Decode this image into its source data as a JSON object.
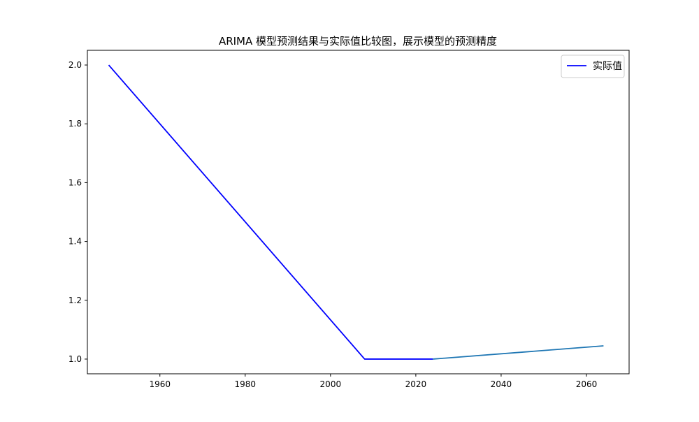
{
  "chart_data": {
    "type": "line",
    "title": "ARIMA 模型预测结果与实际值比较图，展示模型的预测精度",
    "xlabel": "",
    "ylabel": "",
    "xlim": [
      1943,
      2070
    ],
    "ylim": [
      0.95,
      2.05
    ],
    "x_ticks": [
      1960,
      1980,
      2000,
      2020,
      2040,
      2060
    ],
    "y_ticks": [
      1.0,
      1.2,
      1.4,
      1.6,
      1.8,
      2.0
    ],
    "grid": false,
    "legend_position": "top-right",
    "series": [
      {
        "name": "实际值",
        "color": "#0000ff",
        "show_in_legend": true,
        "x": [
          1948,
          2008,
          2024
        ],
        "y": [
          2.0,
          1.0,
          1.0
        ]
      },
      {
        "name": "",
        "color": "#1f77b4",
        "show_in_legend": false,
        "x": [
          2024,
          2064
        ],
        "y": [
          1.0,
          1.045
        ]
      }
    ]
  }
}
